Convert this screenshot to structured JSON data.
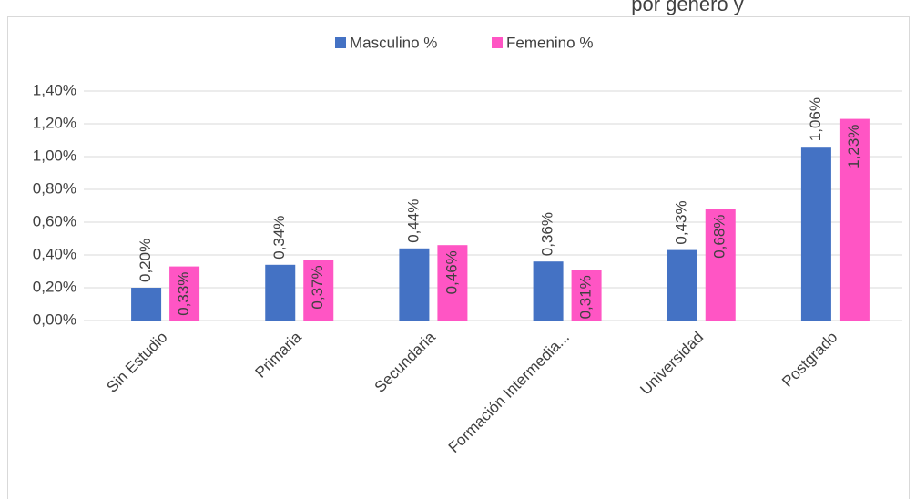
{
  "chart_data": {
    "type": "bar",
    "title": "por género y",
    "categories": [
      "Sin Estudio",
      "Primaria",
      "Secundaria",
      "Formación Intermedia...",
      "Universidad",
      "Postgrado"
    ],
    "series": [
      {
        "name": "Masculino %",
        "color": "#4472c4",
        "values": [
          0.2,
          0.34,
          0.44,
          0.36,
          0.43,
          1.06
        ],
        "value_labels": [
          "0,20%",
          "0,34%",
          "0,44%",
          "0,36%",
          "0,43%",
          "1,06%"
        ]
      },
      {
        "name": "Femenino %",
        "color": "#ff55c4",
        "values": [
          0.33,
          0.37,
          0.46,
          0.31,
          0.68,
          1.23
        ],
        "value_labels": [
          "0,33%",
          "0,37%",
          "0,46%",
          "0,31%",
          "0,68%",
          "1,23%"
        ]
      }
    ],
    "ylim": [
      0,
      1.4
    ],
    "yticks": [
      {
        "value": 0,
        "label": "0,00%"
      },
      {
        "value": 0.2,
        "label": "0,20%"
      },
      {
        "value": 0.4,
        "label": "0,40%"
      },
      {
        "value": 0.6,
        "label": "0,60%"
      },
      {
        "value": 0.8,
        "label": "0,80%"
      },
      {
        "value": 1.0,
        "label": "1,00%"
      },
      {
        "value": 1.2,
        "label": "1,20%"
      },
      {
        "value": 1.4,
        "label": "1,40%"
      }
    ],
    "grid": true,
    "legend": "top"
  }
}
